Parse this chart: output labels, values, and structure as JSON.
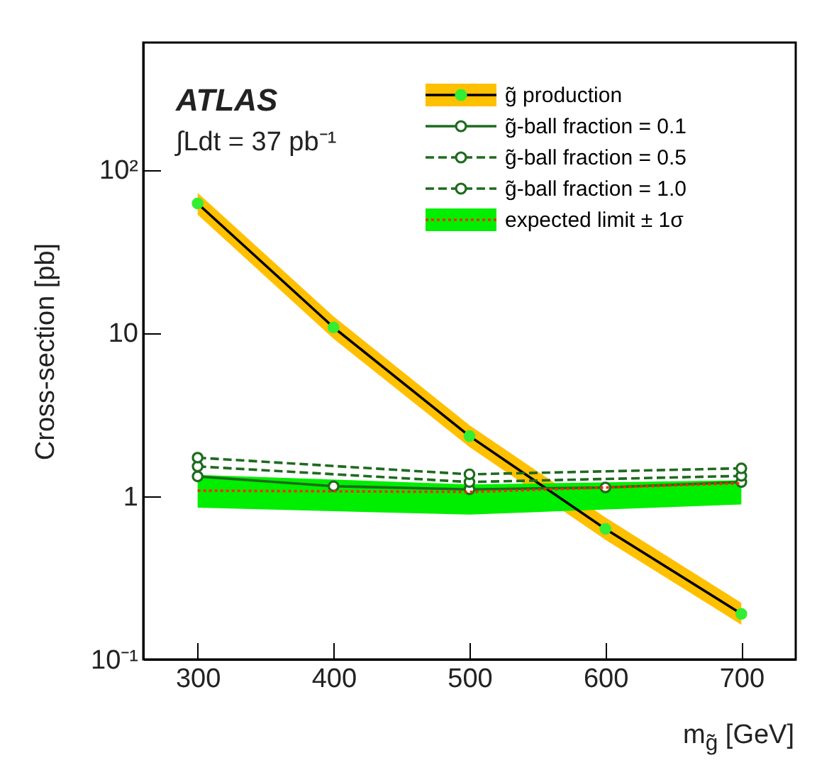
{
  "chart_data": {
    "type": "line",
    "xlabel": "m$_{g̃}$ [GeV]",
    "ylabel": "Cross-section [pb]",
    "annotations": [
      "ATLAS",
      "∫Ldt = 37 pb⁻¹"
    ],
    "xlim": [
      260,
      740
    ],
    "xticks": [
      300,
      400,
      500,
      600,
      700
    ],
    "ylim": [
      0.1,
      600
    ],
    "yticks": [
      {
        "value": 0.1,
        "label": "10⁻¹"
      },
      1,
      10,
      {
        "value": 100,
        "label": "10²"
      }
    ],
    "log": "y",
    "marker": "circle",
    "legend": "top right",
    "grid": false,
    "series": [
      {
        "name": "g̃ production",
        "color": "#000000",
        "line_style": "solid",
        "x": [
          300,
          400,
          500,
          600,
          700
        ],
        "values": [
          62,
          10.8,
          2.33,
          0.63,
          0.19
        ],
        "lower": [
          53,
          9.2,
          2.0,
          0.54,
          0.163
        ],
        "upper": [
          72,
          12.6,
          2.72,
          0.74,
          0.222
        ]
      },
      {
        "name": "g̃-ball fraction = 0.1",
        "color": "#1e6b1e",
        "line_style": "solid",
        "x": [
          300,
          400,
          500,
          600,
          700
        ],
        "values": [
          1.32,
          1.15,
          1.1,
          1.13,
          1.22
        ]
      },
      {
        "name": "g̃-ball fraction = 0.5",
        "color": "#1e6b1e",
        "line_style": "dashed",
        "x": [
          300,
          500,
          700
        ],
        "values": [
          1.52,
          1.22,
          1.33
        ]
      },
      {
        "name": "g̃-ball fraction = 1.0",
        "color": "#1e6b1e",
        "line_style": "dashed",
        "x": [
          300,
          500,
          700
        ],
        "values": [
          1.72,
          1.36,
          1.48
        ]
      },
      {
        "name": "expected limit ± 1σ",
        "color": "#ff2a00",
        "line_style": "dotted",
        "marker": "none",
        "x": [
          300,
          500,
          700
        ],
        "values": [
          1.08,
          1.06,
          1.2
        ],
        "lower": [
          0.85,
          0.77,
          0.89
        ],
        "upper": [
          1.35,
          1.18,
          1.25
        ]
      }
    ]
  }
}
